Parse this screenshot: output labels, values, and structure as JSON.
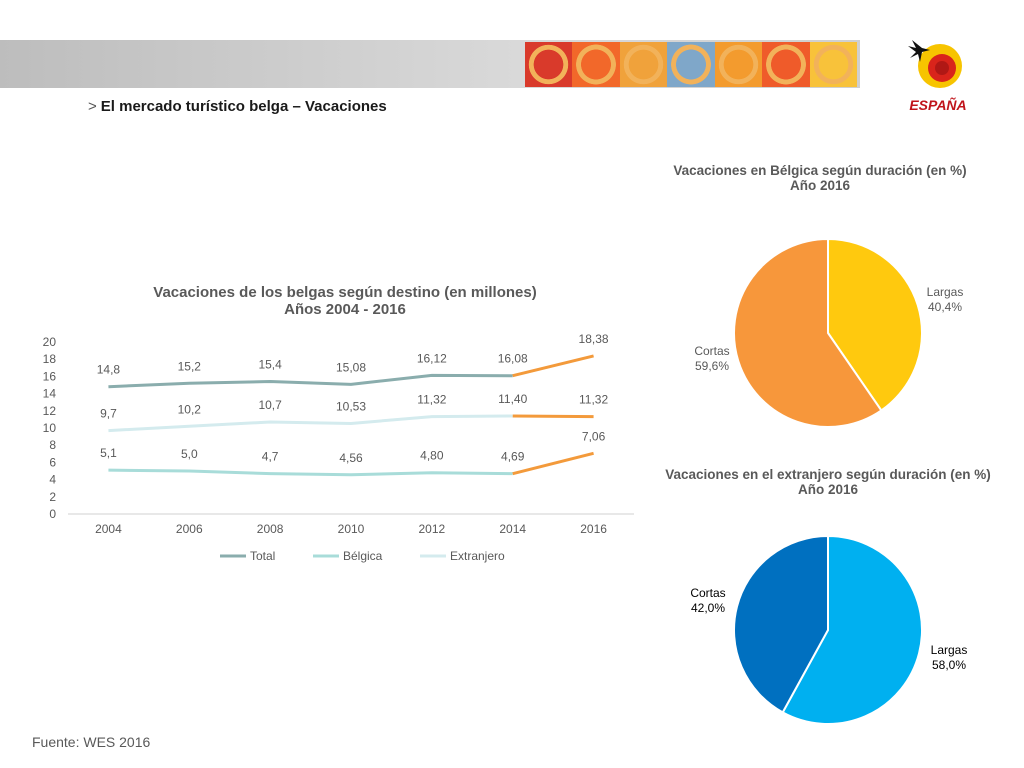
{
  "header": {
    "title": "El mercado turístico belga – Vacaciones",
    "arrow": ">",
    "logo_text": "ESPAÑA",
    "tile_colors": [
      "#d93a2b",
      "#f2682a",
      "#f0a23b",
      "#7fa7c9",
      "#f39b2e",
      "#ef5b2a",
      "#f8c23a"
    ]
  },
  "footer": {
    "source": "Fuente: WES 2016"
  },
  "colors": {
    "total": "#8aadad",
    "belgica": "#a8dcd9",
    "extranjero": "#d4ebee",
    "projection": "#f39a3b",
    "pie1_largas": "#ffc90e",
    "pie1_cortas": "#f7973b",
    "pie2_largas": "#00b0f0",
    "pie2_cortas": "#0070c0"
  },
  "chart_data": [
    {
      "type": "line",
      "title": "Vacaciones de los belgas según destino (en millones)",
      "subtitle": "Años 2004 - 2016",
      "x": [
        "2004",
        "2006",
        "2008",
        "2010",
        "2012",
        "2014",
        "2016"
      ],
      "ylim": [
        0,
        20
      ],
      "yticks": [
        0,
        2,
        4,
        6,
        8,
        10,
        12,
        14,
        16,
        18,
        20
      ],
      "series": [
        {
          "name": "Total",
          "values": [
            14.8,
            15.2,
            15.4,
            15.08,
            16.12,
            16.08,
            18.38
          ],
          "labels": [
            "14,8",
            "15,2",
            "15,4",
            "15,08",
            "16,12",
            "16,08",
            "18,38"
          ]
        },
        {
          "name": "Bélgica",
          "values": [
            5.1,
            5.0,
            4.7,
            4.56,
            4.8,
            4.69,
            7.06
          ],
          "labels": [
            "5,1",
            "5,0",
            "4,7",
            "4,56",
            "4,80",
            "4,69",
            "7,06"
          ]
        },
        {
          "name": "Extranjero",
          "values": [
            9.7,
            10.2,
            10.7,
            10.53,
            11.32,
            11.4,
            11.32
          ],
          "labels": [
            "9,7",
            "10,2",
            "10,7",
            "10,53",
            "11,32",
            "11,40",
            "11,32"
          ]
        }
      ],
      "legend": "bottom"
    },
    {
      "type": "pie",
      "title": "Vacaciones en Bélgica según duración (en %)",
      "subtitle": "Año 2016",
      "slices": [
        {
          "name": "Largas",
          "value": 40.4,
          "label": "40,4%"
        },
        {
          "name": "Cortas",
          "value": 59.6,
          "label": "59,6%"
        }
      ]
    },
    {
      "type": "pie",
      "title": "Vacaciones en el extranjero según duración (en %)",
      "subtitle": "Año 2016",
      "slices": [
        {
          "name": "Largas",
          "value": 58.0,
          "label": "58,0%"
        },
        {
          "name": "Cortas",
          "value": 42.0,
          "label": "42,0%"
        }
      ]
    }
  ]
}
